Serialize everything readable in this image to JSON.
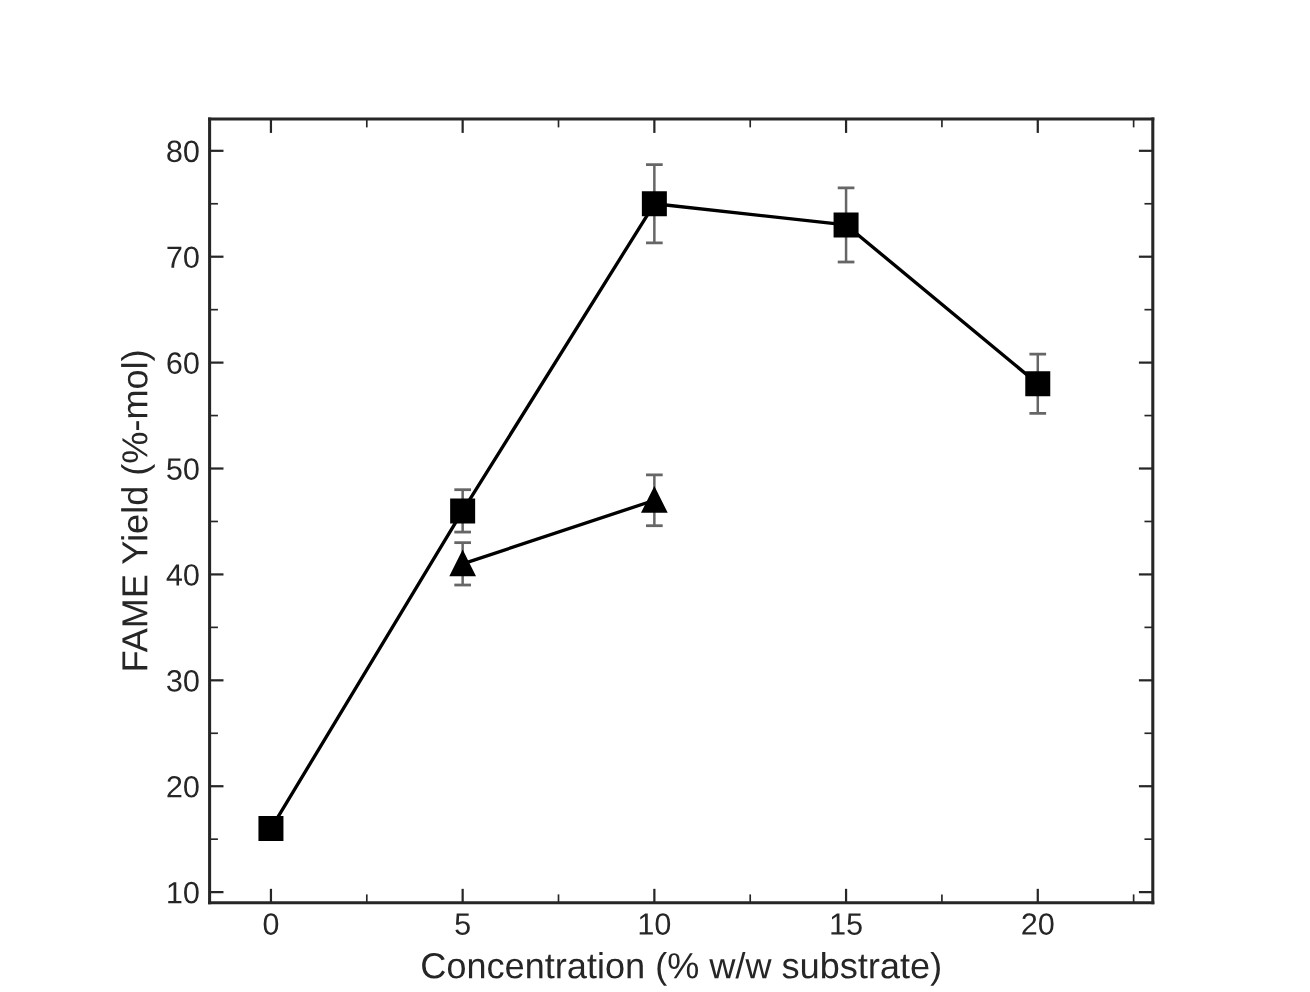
{
  "chart_data": {
    "type": "line",
    "xlabel": "Concentration (% w/w substrate)",
    "ylabel": "FAME Yield (%-mol)",
    "xlim": [
      -1.6,
      23
    ],
    "ylim": [
      9,
      83
    ],
    "xticks": [
      0,
      5,
      10,
      15,
      20
    ],
    "yticks": [
      10,
      20,
      30,
      40,
      50,
      60,
      70,
      80
    ],
    "grid": false,
    "legend": false,
    "line_style": "solid",
    "series": [
      {
        "color": "#000000",
        "marker": "square",
        "x": [
          0,
          5,
          10,
          15,
          20
        ],
        "values": [
          16,
          46,
          75,
          73,
          58
        ],
        "errors": [
          null,
          2,
          3.7,
          3.5,
          2.8
        ]
      },
      {
        "color": "#000000",
        "marker": "triangle",
        "x": [
          5,
          10
        ],
        "values": [
          41,
          47
        ],
        "errors": [
          2,
          2.4
        ]
      }
    ]
  }
}
